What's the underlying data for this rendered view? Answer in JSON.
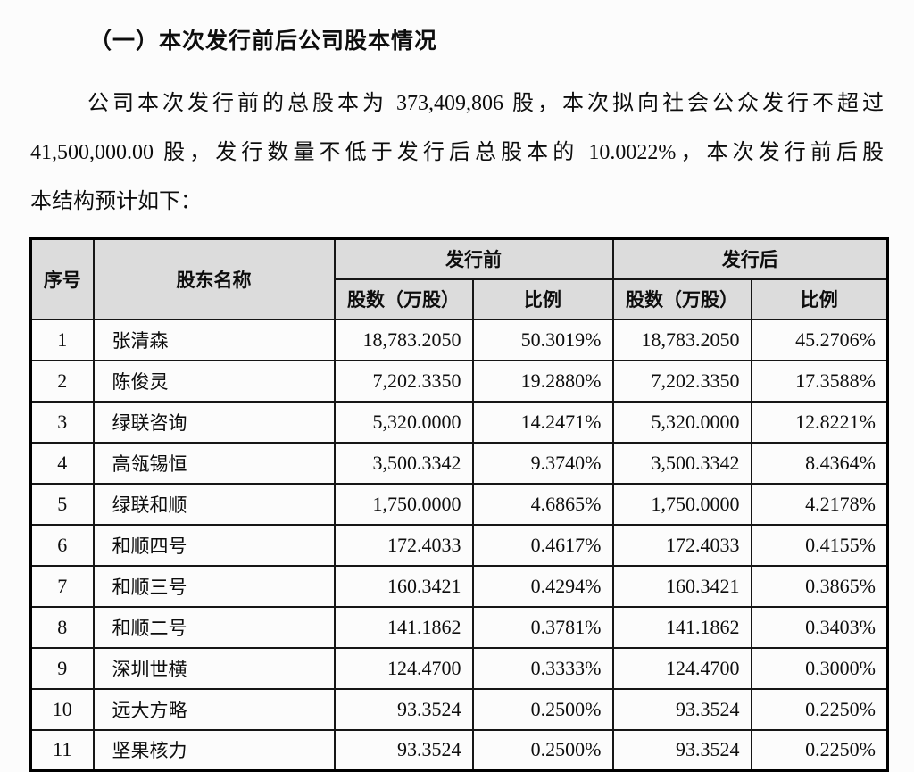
{
  "heading": "（一）本次发行前后公司股本情况",
  "intro": {
    "lines": [
      "公司本次发行前的总股本为 373,409,806 股，本次拟向社会公众发行不超过",
      "41,500,000.00 股，发行数量不低于发行后总股本的 10.0022%，本次发行前后股",
      "本结构预计如下："
    ]
  },
  "table": {
    "headers": {
      "index": "序号",
      "shareholder": "股东名称",
      "pre_group": "发行前",
      "post_group": "发行后",
      "shares": "股数（万股）",
      "ratio": "比例"
    },
    "rows": [
      {
        "no": "1",
        "name": "张清森",
        "pre_shares": "18,783.2050",
        "pre_ratio": "50.3019%",
        "post_shares": "18,783.2050",
        "post_ratio": "45.2706%"
      },
      {
        "no": "2",
        "name": "陈俊灵",
        "pre_shares": "7,202.3350",
        "pre_ratio": "19.2880%",
        "post_shares": "7,202.3350",
        "post_ratio": "17.3588%"
      },
      {
        "no": "3",
        "name": "绿联咨询",
        "pre_shares": "5,320.0000",
        "pre_ratio": "14.2471%",
        "post_shares": "5,320.0000",
        "post_ratio": "12.8221%"
      },
      {
        "no": "4",
        "name": "高瓴锡恒",
        "pre_shares": "3,500.3342",
        "pre_ratio": "9.3740%",
        "post_shares": "3,500.3342",
        "post_ratio": "8.4364%"
      },
      {
        "no": "5",
        "name": "绿联和顺",
        "pre_shares": "1,750.0000",
        "pre_ratio": "4.6865%",
        "post_shares": "1,750.0000",
        "post_ratio": "4.2178%"
      },
      {
        "no": "6",
        "name": "和顺四号",
        "pre_shares": "172.4033",
        "pre_ratio": "0.4617%",
        "post_shares": "172.4033",
        "post_ratio": "0.4155%"
      },
      {
        "no": "7",
        "name": "和顺三号",
        "pre_shares": "160.3421",
        "pre_ratio": "0.4294%",
        "post_shares": "160.3421",
        "post_ratio": "0.3865%"
      },
      {
        "no": "8",
        "name": "和顺二号",
        "pre_shares": "141.1862",
        "pre_ratio": "0.3781%",
        "post_shares": "141.1862",
        "post_ratio": "0.3403%"
      },
      {
        "no": "9",
        "name": "深圳世横",
        "pre_shares": "124.4700",
        "pre_ratio": "0.3333%",
        "post_shares": "124.4700",
        "post_ratio": "0.3000%"
      },
      {
        "no": "10",
        "name": "远大方略",
        "pre_shares": "93.3524",
        "pre_ratio": "0.2500%",
        "post_shares": "93.3524",
        "post_ratio": "0.2250%"
      },
      {
        "no": "11",
        "name": "坚果核力",
        "pre_shares": "93.3524",
        "pre_ratio": "0.2500%",
        "post_shares": "93.3524",
        "post_ratio": "0.2250%"
      }
    ]
  },
  "colors": {
    "header_bg": "#dcdcdc",
    "border": "#161616",
    "text": "#0d0d0d",
    "page_bg": "#fcfcfc"
  }
}
